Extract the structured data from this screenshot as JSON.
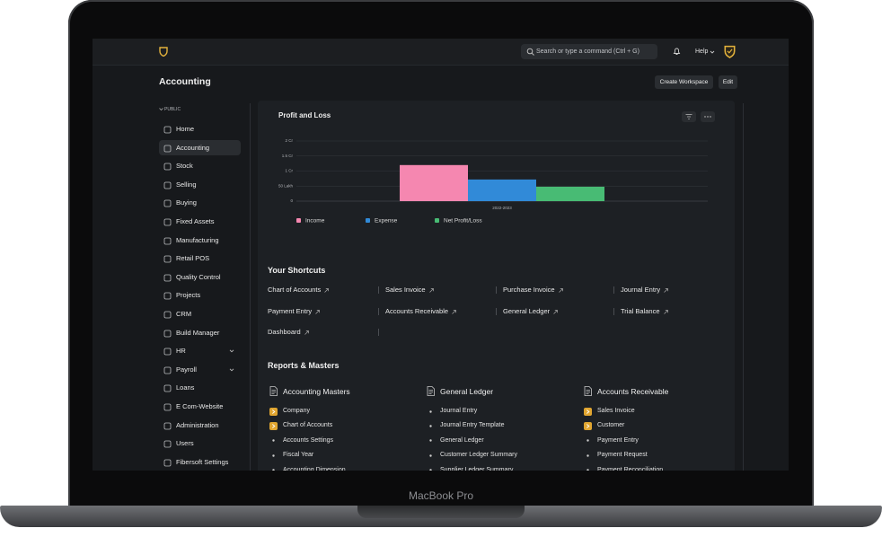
{
  "topbar": {
    "search_placeholder": "Search or type a command (Ctrl + G)",
    "help": "Help"
  },
  "header": {
    "title": "Accounting",
    "buttons": [
      "Create Workspace",
      "Edit"
    ]
  },
  "sidebar": {
    "section": "PUBLIC",
    "active": 1,
    "items": [
      {
        "label": "Home"
      },
      {
        "label": "Accounting"
      },
      {
        "label": "Stock"
      },
      {
        "label": "Selling"
      },
      {
        "label": "Buying"
      },
      {
        "label": "Fixed Assets"
      },
      {
        "label": "Manufacturing"
      },
      {
        "label": "Retail POS"
      },
      {
        "label": "Quality Control"
      },
      {
        "label": "Projects"
      },
      {
        "label": "CRM"
      },
      {
        "label": "Build Manager"
      },
      {
        "label": "HR",
        "expandable": true
      },
      {
        "label": "Payroll",
        "expandable": true
      },
      {
        "label": "Loans"
      },
      {
        "label": "E Com-Website"
      },
      {
        "label": "Administration"
      },
      {
        "label": "Users"
      },
      {
        "label": "Fibersoft Settings"
      }
    ]
  },
  "chart_data": {
    "type": "bar",
    "title": "Profit and Loss",
    "categories": [
      "2022-2023"
    ],
    "series": [
      {
        "name": "Income",
        "color": "#f587b0",
        "values": [
          1.2
        ]
      },
      {
        "name": "Expense",
        "color": "#318ad8",
        "values": [
          0.72
        ]
      },
      {
        "name": "Net Profit/Loss",
        "color": "#48bb74",
        "values": [
          0.48
        ]
      }
    ],
    "ylim": [
      0,
      2
    ],
    "yticks": [
      0,
      {
        "value": 0.5,
        "label": "50 Lakh"
      },
      {
        "value": 1,
        "label": "1 Cr"
      },
      {
        "value": 1.5,
        "label": "1.5 Cr"
      },
      {
        "value": 2,
        "label": "2 Cr"
      }
    ],
    "grid": true
  },
  "shortcuts": {
    "title": "Your Shortcuts",
    "items": [
      "Chart of Accounts",
      "Sales Invoice",
      "Purchase Invoice",
      "Journal Entry",
      "Payment Entry",
      "Accounts Receivable",
      "General Ledger",
      "Trial Balance",
      "Dashboard"
    ]
  },
  "reports": {
    "title": "Reports & Masters",
    "columns": [
      {
        "title": "Accounting Masters",
        "links": [
          {
            "label": "Company",
            "highlight": true
          },
          {
            "label": "Chart of Accounts",
            "highlight": true
          },
          {
            "label": "Accounts Settings"
          },
          {
            "label": "Fiscal Year"
          },
          {
            "label": "Accounting Dimension"
          }
        ]
      },
      {
        "title": "General Ledger",
        "links": [
          {
            "label": "Journal Entry"
          },
          {
            "label": "Journal Entry Template"
          },
          {
            "label": "General Ledger"
          },
          {
            "label": "Customer Ledger Summary"
          },
          {
            "label": "Supplier Ledger Summary"
          }
        ]
      },
      {
        "title": "Accounts Receivable",
        "links": [
          {
            "label": "Sales Invoice",
            "highlight": true
          },
          {
            "label": "Customer",
            "highlight": true
          },
          {
            "label": "Payment Entry"
          },
          {
            "label": "Payment Request"
          },
          {
            "label": "Payment Reconciliation"
          }
        ]
      }
    ]
  },
  "device": {
    "label": "MacBook Pro"
  }
}
